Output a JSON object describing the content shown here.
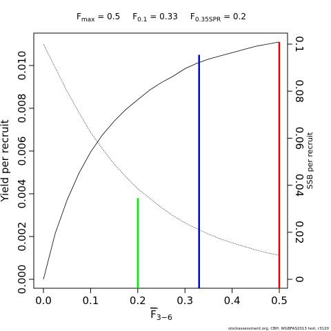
{
  "chart_data": {
    "type": "line",
    "title_parts": [
      {
        "base": "F",
        "sub": "max",
        "text": " = 0.5"
      },
      {
        "base": "F",
        "sub": "0.1",
        "text": " = 0.33"
      },
      {
        "base": "F",
        "sub": "0.35SPR",
        "text": " = 0.2"
      }
    ],
    "xlabel": {
      "base": "F",
      "sub": "3−6"
    },
    "ylabel": "Yield per recruit",
    "y2label": "SSB per recruit",
    "xlim": [
      0,
      0.5
    ],
    "ylim": [
      0,
      0.011
    ],
    "y2lim": [
      0,
      0.1
    ],
    "x_ticks": [
      "0.0",
      "0.1",
      "0.2",
      "0.3",
      "0.4",
      "0.5"
    ],
    "y_ticks": [
      "0.000",
      "0.002",
      "0.004",
      "0.006",
      "0.008",
      "0.010"
    ],
    "y2_ticks": [
      "0",
      "0.02",
      "0.04",
      "0.06",
      "0.08",
      "0.1"
    ],
    "series": [
      {
        "axis": "left",
        "style": "solid",
        "x": [
          0,
          0.025,
          0.05,
          0.075,
          0.1,
          0.125,
          0.15,
          0.175,
          0.2,
          0.225,
          0.25,
          0.275,
          0.3,
          0.325,
          0.35,
          0.375,
          0.4,
          0.425,
          0.45,
          0.475,
          0.5
        ],
        "y": [
          0,
          0.00215,
          0.0037,
          0.00495,
          0.00595,
          0.00675,
          0.0074,
          0.00795,
          0.0084,
          0.00885,
          0.0092,
          0.0095,
          0.00985,
          0.0101,
          0.0103,
          0.01045,
          0.0106,
          0.01075,
          0.0109,
          0.011,
          0.0111
        ]
      },
      {
        "axis": "right",
        "style": "dotted",
        "x": [
          0,
          0.025,
          0.05,
          0.075,
          0.1,
          0.125,
          0.15,
          0.175,
          0.2,
          0.225,
          0.25,
          0.275,
          0.3,
          0.325,
          0.35,
          0.375,
          0.4,
          0.425,
          0.45,
          0.475,
          0.5
        ],
        "y": [
          0.1,
          0.09,
          0.08,
          0.071,
          0.0625,
          0.0555,
          0.049,
          0.0435,
          0.0385,
          0.0345,
          0.0305,
          0.027,
          0.024,
          0.0215,
          0.0192,
          0.0172,
          0.0155,
          0.014,
          0.0125,
          0.0112,
          0.0102
        ]
      }
    ],
    "reference_lines": [
      {
        "x": 0.2,
        "y_top": 0.0038,
        "color": "#00ee00"
      },
      {
        "x": 0.33,
        "y_top": 0.0105,
        "color": "#0000cc"
      },
      {
        "x": 0.5,
        "y_top": 0.0111,
        "color": "#dd0000"
      }
    ],
    "grid": false,
    "footer": "stockassessment.org, CBH: WGBFAS2013 test, r3120"
  }
}
